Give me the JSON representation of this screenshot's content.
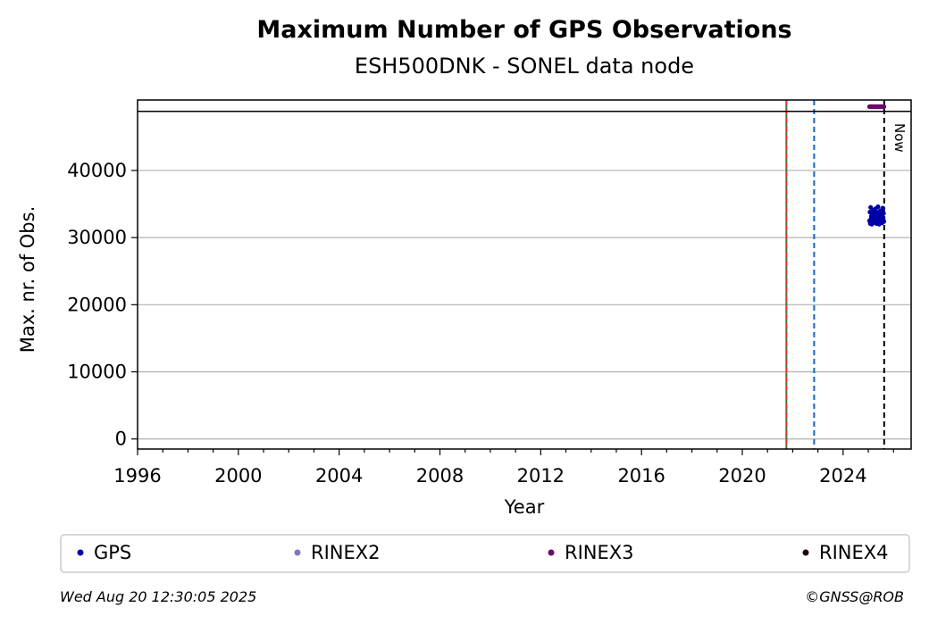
{
  "chart_data": {
    "type": "scatter",
    "title": "Maximum Number of GPS Observations",
    "subtitle": "ESH500DNK - SONEL data node",
    "xlabel": "Year",
    "ylabel": "Max. nr. of Obs.",
    "xlim": [
      1996,
      2026.7
    ],
    "ylim": [
      -1500,
      50500
    ],
    "x_ticks": [
      1996,
      2000,
      2004,
      2008,
      2012,
      2016,
      2020,
      2024
    ],
    "x_tick_labels": [
      "1996",
      "2000",
      "2004",
      "2008",
      "2012",
      "2016",
      "2020",
      "2024"
    ],
    "y_ticks": [
      0,
      10000,
      20000,
      30000,
      40000
    ],
    "y_tick_labels": [
      "0",
      "10000",
      "20000",
      "30000",
      "40000"
    ],
    "grid": "horizontal",
    "legend_placement": "below",
    "threshold_line": 48800,
    "vertical_lines": [
      {
        "x": 2021.75,
        "style": "solid",
        "color": "#2e7d32"
      },
      {
        "x": 2021.75,
        "style": "dashed",
        "color": "#e53935"
      },
      {
        "x": 2022.85,
        "style": "dashed",
        "color": "#1565c0"
      },
      {
        "x": 2025.63,
        "style": "dashed",
        "color": "#000000",
        "label": "Now"
      }
    ],
    "series": [
      {
        "name": "GPS",
        "color": "#0000a8",
        "x_start": 2025.05,
        "x_end": 2025.62,
        "values": [
          32500,
          33800,
          32100,
          34500,
          32800,
          33200,
          32000,
          33900,
          32600,
          33400,
          32200,
          34100,
          32900,
          33600,
          32300,
          33000,
          34300,
          32700,
          33500,
          32100,
          33800,
          32400,
          33100,
          34600,
          32500,
          33300,
          32000,
          33700,
          32800,
          34000,
          32300,
          33200,
          32600,
          33900,
          32200,
          33400,
          34400,
          32900,
          33600,
          32400
        ]
      },
      {
        "name": "RINEX2",
        "color": "#7b7bb5",
        "x_start": 0,
        "x_end": 0,
        "values": []
      },
      {
        "name": "RINEX3",
        "color": "#6b0a6b",
        "x_start": 2025.05,
        "x_end": 2025.62,
        "values": [
          49500,
          49500,
          49500,
          49500,
          49500,
          49500,
          49500,
          49500,
          49500,
          49500,
          49500,
          49500,
          49500,
          49500,
          49500,
          49500,
          49500,
          49500,
          49500,
          49500
        ]
      },
      {
        "name": "RINEX4",
        "color": "#1a0010",
        "x_start": 0,
        "x_end": 0,
        "values": []
      }
    ]
  },
  "now_label": "Now",
  "footer": {
    "timestamp": "Wed Aug 20 12:30:05 2025",
    "credit": "©GNSS@ROB"
  }
}
